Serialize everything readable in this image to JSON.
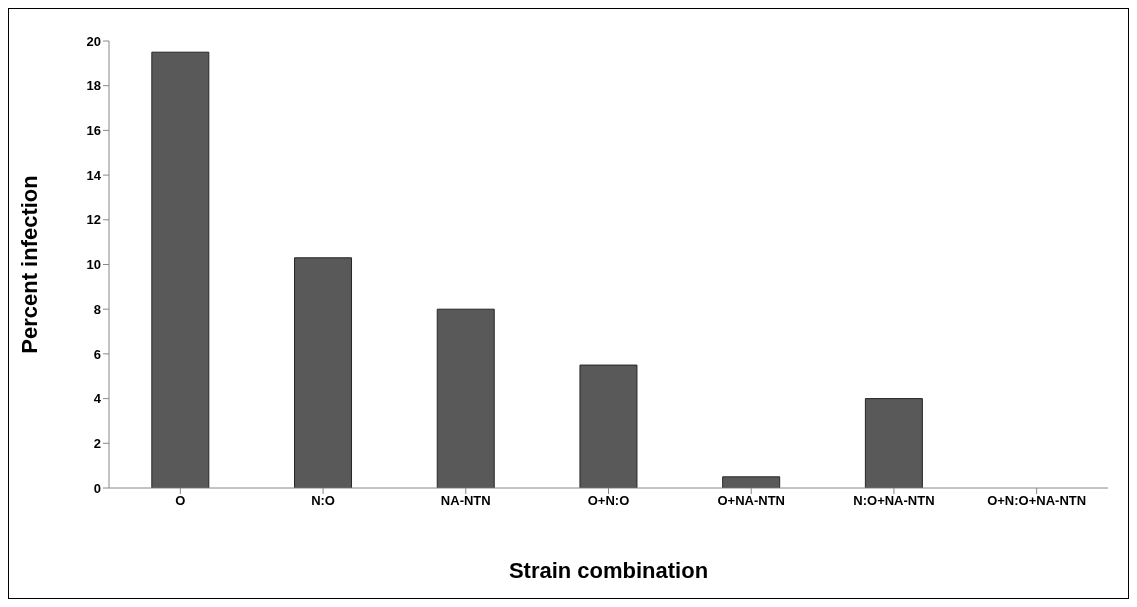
{
  "chart_data": {
    "type": "bar",
    "xlabel": "Strain combination",
    "ylabel": "Percent infection",
    "categories": [
      "O",
      "N:O",
      "NA-NTN",
      "O+N:O",
      "O+NA-NTN",
      "N:O+NA-NTN",
      "O+N:O+NA-NTN"
    ],
    "values": [
      19.5,
      10.3,
      8,
      5.5,
      0.5,
      4,
      0
    ],
    "color": "#595959",
    "ylim": [
      0,
      20
    ],
    "yticks": [
      0,
      2,
      4,
      6,
      8,
      10,
      12,
      14,
      16,
      18,
      20
    ],
    "grid": false,
    "legend": false
  }
}
